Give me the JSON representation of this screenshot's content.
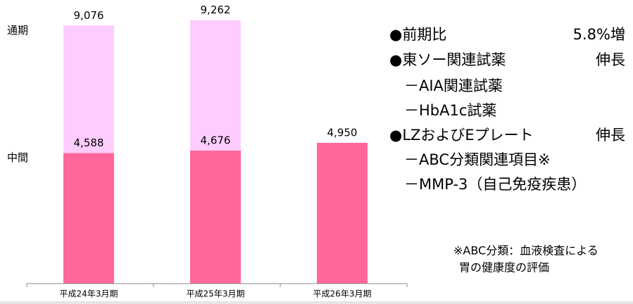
{
  "chart_data": {
    "type": "bar",
    "categories": [
      "平成24年3月期",
      "平成25年3月期",
      "平成26年3月期"
    ],
    "series": [
      {
        "name": "通期",
        "color": "#ffccff",
        "values": [
          9076,
          9262,
          null
        ],
        "value_labels": [
          "9,076",
          "9,262",
          null
        ]
      },
      {
        "name": "中間",
        "color": "#ff6699",
        "values": [
          4588,
          4676,
          4950
        ],
        "value_labels": [
          "4,588",
          "4,676",
          "4,950"
        ]
      }
    ],
    "ylim": [
      0,
      9800
    ],
    "annotations": [
      {
        "label": "●前期比",
        "note": "5.8%増"
      },
      {
        "label": "●東ソー関連試薬",
        "note": "伸長"
      },
      {
        "label": "－AIA関連試薬",
        "sub": true
      },
      {
        "label": "－HbA1c試薬",
        "sub": true
      },
      {
        "label": "●LZおよびEプレート",
        "note": "伸長"
      },
      {
        "label": "－ABC分類関連項目※",
        "sub": true
      },
      {
        "label": "－MMP-3（自己免疫疾患）",
        "sub": true
      }
    ],
    "footnote": [
      "※ABC分類：血液検査による",
      "胃の健康度の評価"
    ]
  }
}
